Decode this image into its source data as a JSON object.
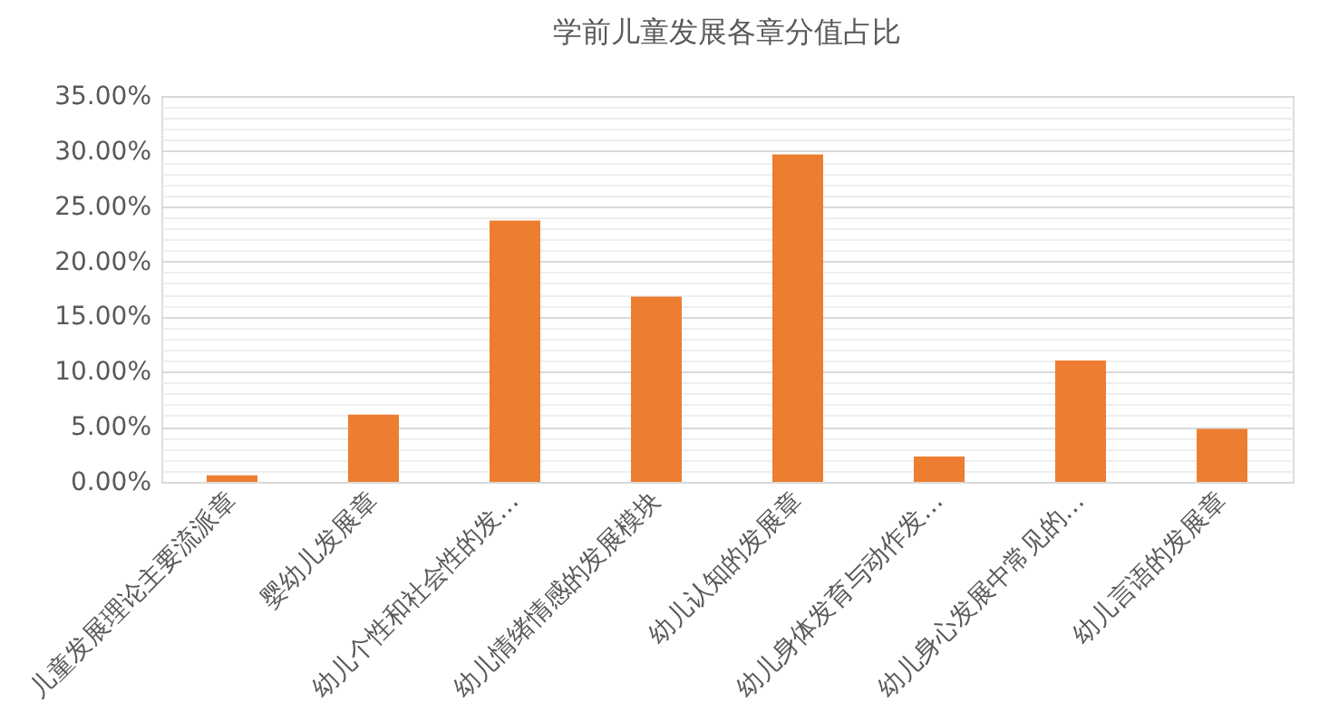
{
  "chart_data": {
    "type": "bar",
    "title": "学前儿童发展各章分值占比",
    "categories": [
      "儿童发展理论主要流派章",
      "婴幼儿发展章",
      "幼儿个性和社会性的发…",
      "幼儿情绪情感的发展模块",
      "幼儿认知的发展章",
      "幼儿身体发育与动作发…",
      "幼儿身心发展中常见的…",
      "幼儿言语的发展章"
    ],
    "values": [
      0.6,
      6.1,
      23.7,
      16.8,
      29.7,
      2.3,
      11.0,
      4.8
    ],
    "color": "#ed7d31",
    "ylim": [
      0,
      35
    ],
    "yticks": [
      {
        "value": 0,
        "label": "0.00%"
      },
      {
        "value": 1,
        "label": null
      },
      {
        "value": 2,
        "label": null
      },
      {
        "value": 3,
        "label": null
      },
      {
        "value": 4,
        "label": null
      },
      {
        "value": 5,
        "label": "5.00%"
      },
      {
        "value": 6,
        "label": null
      },
      {
        "value": 7,
        "label": null
      },
      {
        "value": 8,
        "label": null
      },
      {
        "value": 9,
        "label": null
      },
      {
        "value": 10,
        "label": "10.00%"
      },
      {
        "value": 11,
        "label": null
      },
      {
        "value": 12,
        "label": null
      },
      {
        "value": 13,
        "label": null
      },
      {
        "value": 14,
        "label": null
      },
      {
        "value": 15,
        "label": "15.00%"
      },
      {
        "value": 16,
        "label": null
      },
      {
        "value": 17,
        "label": null
      },
      {
        "value": 18,
        "label": null
      },
      {
        "value": 19,
        "label": null
      },
      {
        "value": 20,
        "label": "20.00%"
      },
      {
        "value": 21,
        "label": null
      },
      {
        "value": 22,
        "label": null
      },
      {
        "value": 23,
        "label": null
      },
      {
        "value": 24,
        "label": null
      },
      {
        "value": 25,
        "label": "25.00%"
      },
      {
        "value": 26,
        "label": null
      },
      {
        "value": 27,
        "label": null
      },
      {
        "value": 28,
        "label": null
      },
      {
        "value": 29,
        "label": null
      },
      {
        "value": 30,
        "label": "30.00%"
      },
      {
        "value": 31,
        "label": null
      },
      {
        "value": 32,
        "label": null
      },
      {
        "value": 33,
        "label": null
      },
      {
        "value": 34,
        "label": null
      },
      {
        "value": 35,
        "label": "35.00%"
      }
    ],
    "grid": "y"
  }
}
